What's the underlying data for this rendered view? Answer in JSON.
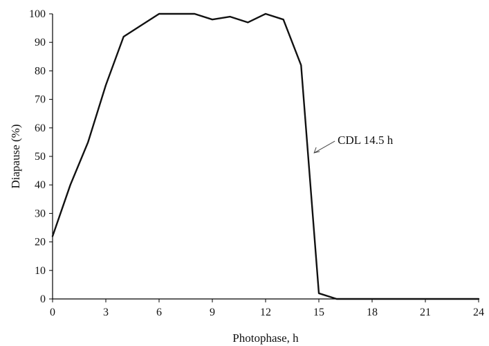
{
  "chart_data": {
    "type": "line",
    "xlabel": "Photophase, h",
    "ylabel": "Diapause (%)",
    "xlim": [
      0,
      24
    ],
    "ylim": [
      0,
      100
    ],
    "xticks": [
      "0",
      "3",
      "6",
      "9",
      "12",
      "15",
      "18",
      "21",
      "24"
    ],
    "yticks": [
      "0",
      "10",
      "20",
      "30",
      "40",
      "50",
      "60",
      "70",
      "80",
      "90",
      "100"
    ],
    "grid": false,
    "series": [
      {
        "x": [
          0,
          1,
          2,
          3,
          4,
          5,
          6,
          7,
          8,
          9,
          10,
          11,
          12,
          13,
          14,
          15,
          16,
          17,
          18,
          19,
          20,
          21,
          22,
          23,
          24
        ],
        "y": [
          22,
          40,
          55,
          75,
          92,
          96,
          100,
          100,
          100,
          98,
          99,
          97,
          100,
          98,
          82,
          2,
          0,
          0,
          0,
          0,
          0,
          0,
          0,
          0,
          0
        ]
      }
    ],
    "annotations": [
      {
        "text": "CDL 14.5 h",
        "x": 14.5,
        "y": 51
      }
    ]
  }
}
